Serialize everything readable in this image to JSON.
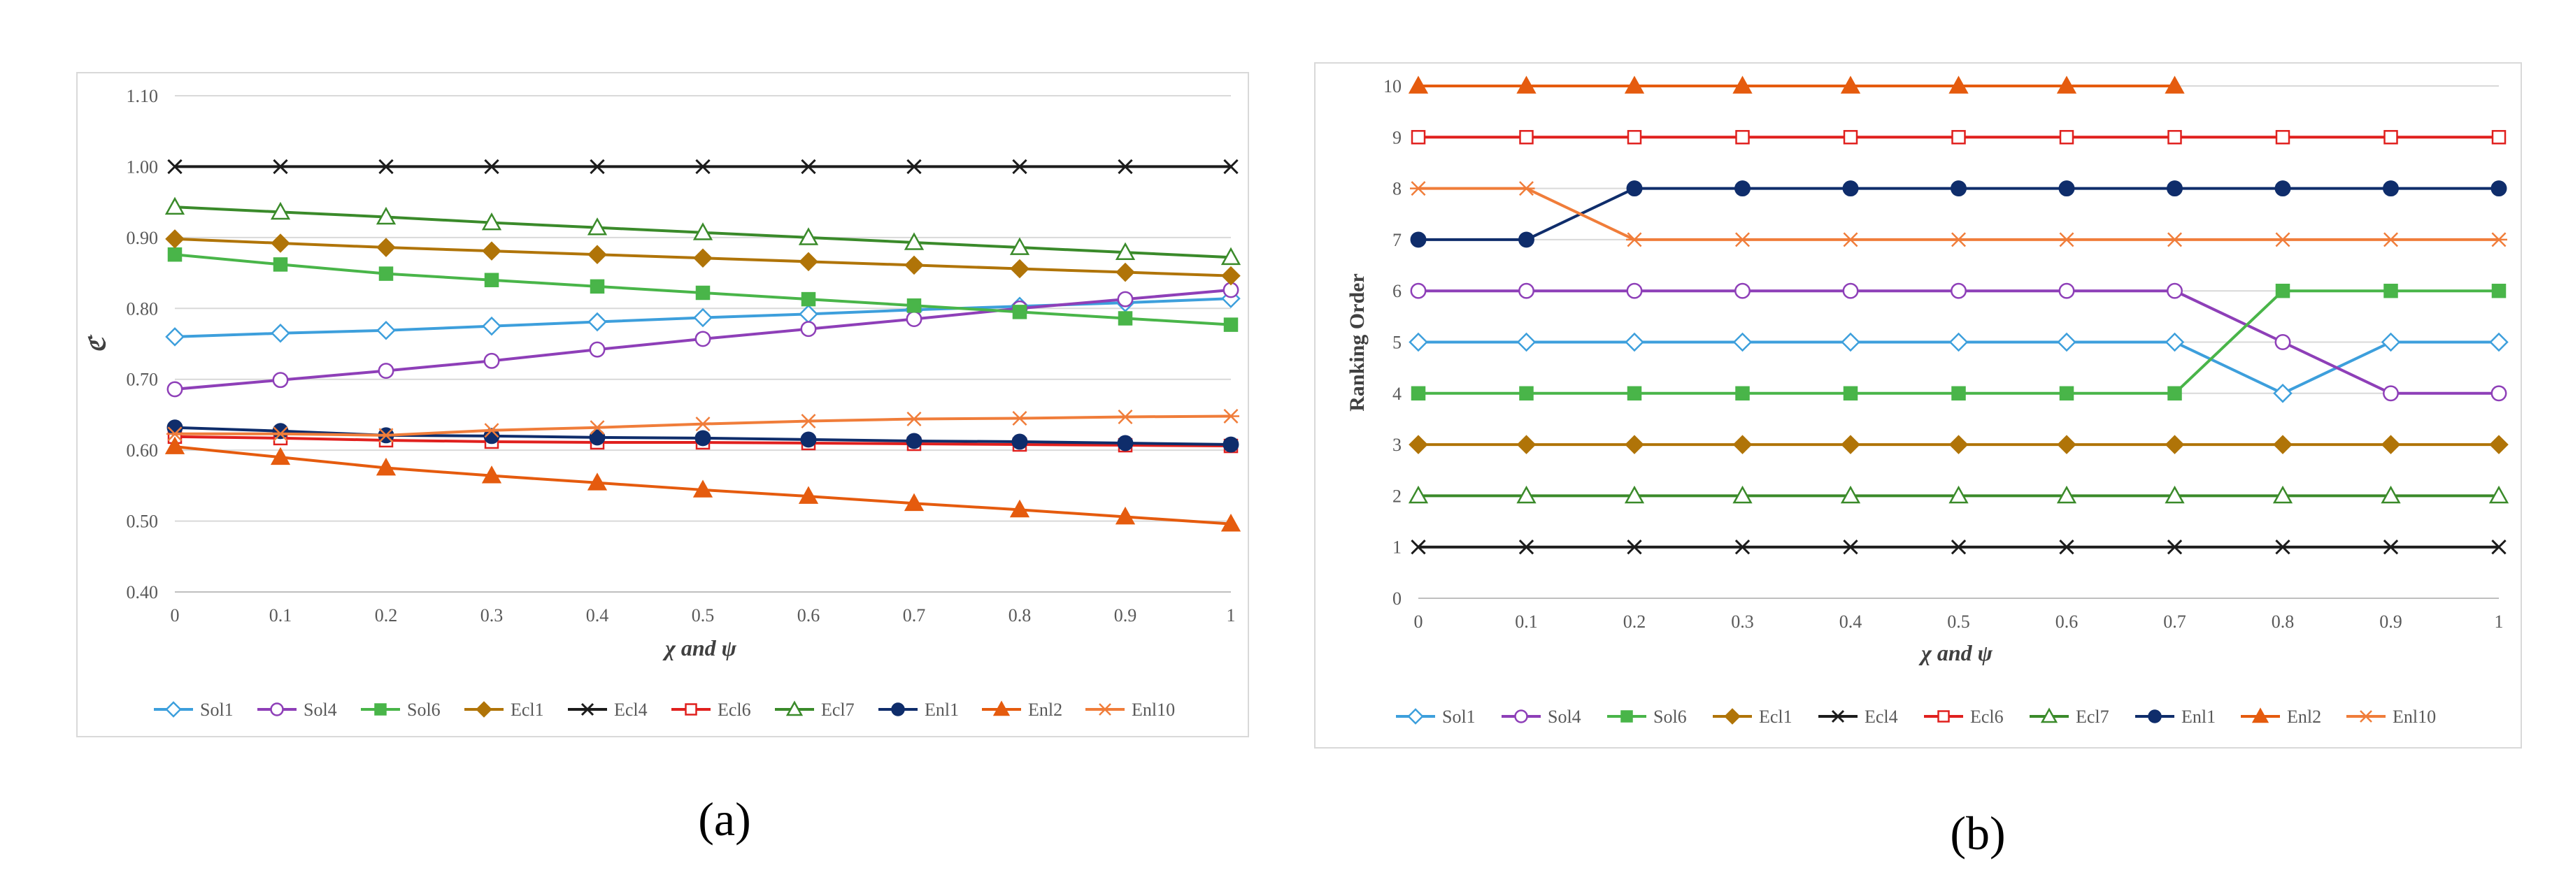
{
  "captions": [
    "(a)",
    "(b)"
  ],
  "colors": {
    "Sol1": "#3d9fdc",
    "Sol4": "#8e3fb8",
    "Sol6": "#49b549",
    "Ecl1": "#b07408",
    "Ecl4": "#1c1c1c",
    "Ecl6": "#e0201e",
    "Ecl7": "#3a8a2a",
    "Enl1": "#0f2d6b",
    "Enl2": "#e55b0e",
    "Enl10": "#f07d3a"
  },
  "markers": {
    "Sol1": "diamond-open",
    "Sol4": "circle-open",
    "Sol6": "square",
    "Ecl1": "diamond",
    "Ecl4": "x",
    "Ecl6": "square-open",
    "Ecl7": "triangle-open",
    "Enl1": "circle",
    "Enl2": "triangle",
    "Enl10": "asterisk"
  },
  "chart_data": [
    {
      "type": "line",
      "title": "",
      "xlabel": "χ and ψ",
      "ylabel": "ℭ",
      "x": [
        0,
        0.1,
        0.2,
        0.3,
        0.4,
        0.5,
        0.6,
        0.7,
        0.8,
        0.9,
        1
      ],
      "x_tick_labels": [
        "0",
        "0.1",
        "0.2",
        "0.3",
        "0.4",
        "0.5",
        "0.6",
        "0.7",
        "0.8",
        "0.9",
        "1"
      ],
      "ylim": [
        0.4,
        1.1
      ],
      "y_ticks": [
        0.4,
        0.5,
        0.6,
        0.7,
        0.8,
        0.9,
        1.0,
        1.1
      ],
      "y_tick_labels": [
        "0.40",
        "0.50",
        "0.60",
        "0.70",
        "0.80",
        "0.90",
        "1.00",
        "1.10"
      ],
      "legend_position": "bottom",
      "grid": true,
      "series": [
        {
          "name": "Sol1",
          "values": [
            0.76,
            0.765,
            0.769,
            0.775,
            0.781,
            0.787,
            0.792,
            0.798,
            0.803,
            0.808,
            0.814
          ]
        },
        {
          "name": "Sol4",
          "values": [
            0.686,
            0.699,
            0.712,
            0.726,
            0.742,
            0.757,
            0.771,
            0.785,
            0.8,
            0.813,
            0.826
          ]
        },
        {
          "name": "Sol6",
          "values": [
            0.876,
            0.862,
            0.849,
            0.84,
            0.831,
            0.822,
            0.813,
            0.804,
            0.795,
            0.786,
            0.777
          ]
        },
        {
          "name": "Ecl1",
          "values": [
            0.898,
            0.892,
            0.886,
            0.881,
            0.876,
            0.871,
            0.866,
            0.861,
            0.856,
            0.851,
            0.846
          ]
        },
        {
          "name": "Ecl4",
          "values": [
            1.0,
            1.0,
            1.0,
            1.0,
            1.0,
            1.0,
            1.0,
            1.0,
            1.0,
            1.0,
            1.0
          ]
        },
        {
          "name": "Ecl6",
          "values": [
            0.619,
            0.617,
            0.614,
            0.612,
            0.611,
            0.611,
            0.61,
            0.609,
            0.608,
            0.607,
            0.606
          ]
        },
        {
          "name": "Ecl7",
          "values": [
            0.943,
            0.936,
            0.929,
            0.921,
            0.914,
            0.907,
            0.9,
            0.893,
            0.886,
            0.879,
            0.872
          ]
        },
        {
          "name": "Enl1",
          "values": [
            0.632,
            0.627,
            0.621,
            0.62,
            0.618,
            0.617,
            0.615,
            0.613,
            0.612,
            0.61,
            0.608
          ]
        },
        {
          "name": "Enl2",
          "values": [
            0.605,
            0.59,
            0.575,
            0.564,
            0.554,
            0.544,
            0.535,
            0.525,
            0.516,
            0.506,
            0.496
          ]
        },
        {
          "name": "Enl10",
          "values": [
            0.623,
            0.623,
            0.621,
            0.628,
            0.632,
            0.637,
            0.641,
            0.644,
            0.645,
            0.647,
            0.648
          ]
        }
      ]
    },
    {
      "type": "line",
      "title": "",
      "xlabel": "χ and ψ",
      "ylabel": "Ranking Order",
      "x": [
        0,
        0.1,
        0.2,
        0.3,
        0.4,
        0.5,
        0.6,
        0.7,
        0.8,
        0.9,
        1
      ],
      "x_tick_labels": [
        "0",
        "0.1",
        "0.2",
        "0.3",
        "0.4",
        "0.5",
        "0.6",
        "0.7",
        "0.8",
        "0.9",
        "1"
      ],
      "ylim": [
        0,
        10
      ],
      "y_ticks": [
        0,
        1,
        2,
        3,
        4,
        5,
        6,
        7,
        8,
        9,
        10
      ],
      "y_tick_labels": [
        "0",
        "1",
        "2",
        "3",
        "4",
        "5",
        "6",
        "7",
        "8",
        "9",
        "10"
      ],
      "legend_position": "bottom",
      "grid": true,
      "series": [
        {
          "name": "Sol1",
          "values": [
            5,
            5,
            5,
            5,
            5,
            5,
            5,
            5,
            4,
            5,
            5
          ]
        },
        {
          "name": "Sol4",
          "values": [
            6,
            6,
            6,
            6,
            6,
            6,
            6,
            6,
            5,
            4,
            4
          ]
        },
        {
          "name": "Sol6",
          "values": [
            4,
            4,
            4,
            4,
            4,
            4,
            4,
            4,
            6,
            6,
            6
          ]
        },
        {
          "name": "Ecl1",
          "values": [
            3,
            3,
            3,
            3,
            3,
            3,
            3,
            3,
            3,
            3,
            3
          ]
        },
        {
          "name": "Ecl4",
          "values": [
            1,
            1,
            1,
            1,
            1,
            1,
            1,
            1,
            1,
            1,
            1
          ]
        },
        {
          "name": "Ecl6",
          "values": [
            9,
            9,
            9,
            9,
            9,
            9,
            9,
            9,
            9,
            9,
            9
          ]
        },
        {
          "name": "Ecl7",
          "values": [
            2,
            2,
            2,
            2,
            2,
            2,
            2,
            2,
            2,
            2,
            2
          ]
        },
        {
          "name": "Enl1",
          "values": [
            7,
            7,
            8,
            8,
            8,
            8,
            8,
            8,
            8,
            8,
            8
          ]
        },
        {
          "name": "Enl2",
          "values": [
            10,
            10,
            10,
            10,
            10,
            10,
            10,
            10,
            null,
            null,
            null
          ]
        },
        {
          "name": "Enl10",
          "values": [
            8,
            8,
            7,
            7,
            7,
            7,
            7,
            7,
            7,
            7,
            7
          ]
        }
      ]
    }
  ]
}
